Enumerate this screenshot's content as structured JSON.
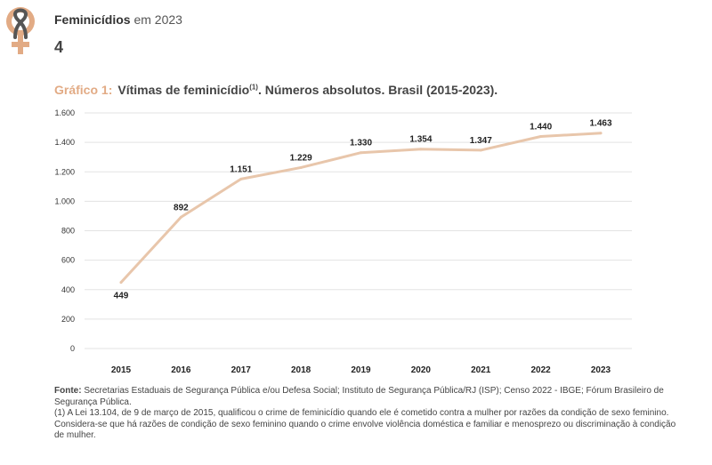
{
  "header": {
    "section_title": "Feminicídios",
    "year_text": "em 2023",
    "page_number": "4"
  },
  "logo": {
    "icon": "female-symbol-with-ribbon-icon",
    "color": "#e2ab85",
    "ribbon_color": "#555555"
  },
  "chart_title": {
    "label": "Gráfico 1:",
    "text": "Vítimas de feminicídio",
    "note_ref": "(1)",
    "text_after": ". Números absolutos. Brasil (2015-2023)."
  },
  "chart_data": {
    "type": "line",
    "title": "Vítimas de feminicídio(1). Números absolutos. Brasil (2015-2023).",
    "x": [
      "2015",
      "2016",
      "2017",
      "2018",
      "2019",
      "2020",
      "2021",
      "2022",
      "2023"
    ],
    "series": [
      {
        "values": [
          449,
          892,
          1151,
          1229,
          1330,
          1354,
          1347,
          1440,
          1463
        ],
        "labels": [
          "449",
          "892",
          "1.151",
          "1.229",
          "1.330",
          "1.354",
          "1.347",
          "1.440",
          "1.463"
        ],
        "color": "#e8c6ab"
      }
    ],
    "ylim": [
      0,
      1600
    ],
    "yticks": [
      0,
      200,
      400,
      600,
      800,
      1000,
      1200,
      1400,
      1600
    ],
    "ytick_labels": [
      "0",
      "200",
      "400",
      "600",
      "800",
      "1.000",
      "1.200",
      "1.400",
      "1.600"
    ],
    "grid": true,
    "xlabel": "",
    "ylabel": ""
  },
  "footer": {
    "source_label": "Fonte:",
    "source_text": "Secretarias Estaduais de Segurança Pública e/ou Defesa Social; Instituto de Segurança Pública/RJ (ISP); Censo 2022 - IBGE; Fórum Brasileiro de Segurança Pública.",
    "note_text": "(1) A Lei 13.104, de 9 de março de 2015, qualificou o crime de feminicídio quando ele é cometido contra a mulher por razões da condição de sexo feminino. Considera-se que há razões de condição de sexo feminino quando o crime envolve violência doméstica e familiar e menosprezo ou discriminação à condição de mulher."
  }
}
